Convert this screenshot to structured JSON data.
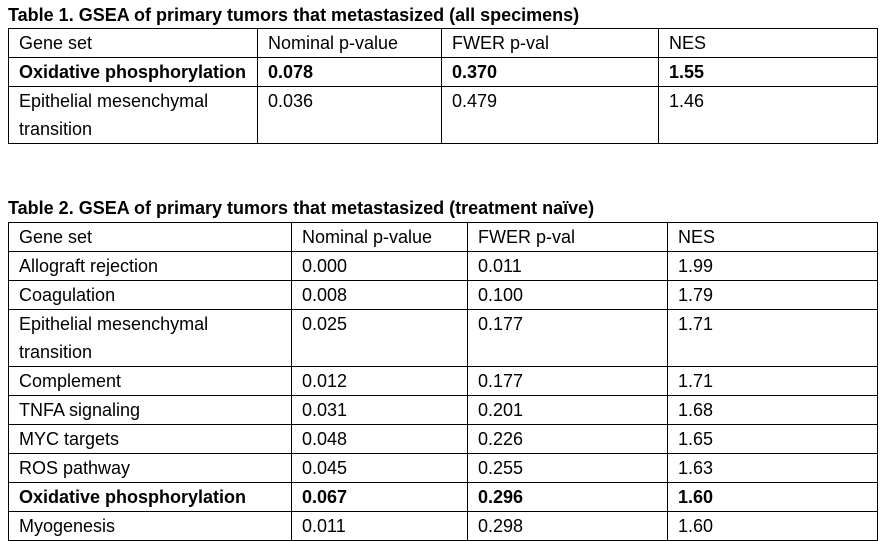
{
  "table1": {
    "caption": "Table 1. GSEA of primary tumors that metastasized (all specimens)",
    "headers": [
      "Gene set",
      "Nominal p-value",
      "FWER p-val",
      "NES"
    ],
    "rows": [
      [
        "Oxidative phosphorylation",
        "0.078",
        "0.370",
        "1.55"
      ],
      [
        "Epithelial mesenchymal transition",
        "0.036",
        "0.479",
        "1.46"
      ]
    ]
  },
  "table2": {
    "caption": "Table 2. GSEA of primary tumors that metastasized (treatment naïve)",
    "headers": [
      "Gene set",
      "Nominal p-value",
      "FWER p-val",
      "NES"
    ],
    "rows": [
      [
        "Allograft rejection",
        "0.000",
        "0.011",
        "1.99"
      ],
      [
        "Coagulation",
        "0.008",
        "0.100",
        "1.79"
      ],
      [
        "Epithelial mesenchymal transition",
        "0.025",
        "0.177",
        "1.71"
      ],
      [
        "Complement",
        "0.012",
        "0.177",
        "1.71"
      ],
      [
        "TNFA signaling",
        "0.031",
        "0.201",
        "1.68"
      ],
      [
        "MYC targets",
        "0.048",
        "0.226",
        "1.65"
      ],
      [
        "ROS pathway",
        "0.045",
        "0.255",
        "1.63"
      ],
      [
        "Oxidative phosphorylation",
        "0.067",
        "0.296",
        "1.60"
      ],
      [
        "Myogenesis",
        "0.011",
        "0.298",
        "1.60"
      ]
    ]
  }
}
